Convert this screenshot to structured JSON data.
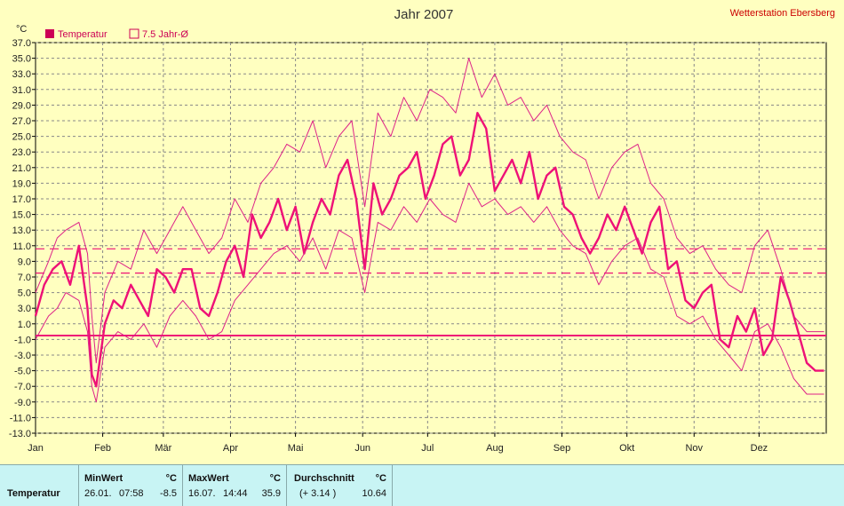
{
  "header": {
    "title": "Jahr 2007",
    "station": "Wetterstation Ebersberg",
    "unit": "°C"
  },
  "legend": [
    {
      "label": "Temperatur",
      "filled": true
    },
    {
      "label": "7.5 Jahr-Ø",
      "filled": false
    }
  ],
  "colors": {
    "background": "#ffffc0",
    "plot_background": "#ffffc0",
    "series": "#ee1177",
    "envelope": "#dd2288",
    "grid": "#888888",
    "stats_background": "#c8f4f4"
  },
  "chart_data": {
    "type": "line",
    "title": "Jahr 2007",
    "xlabel": "",
    "ylabel": "°C",
    "ylim": [
      -13.0,
      37.0
    ],
    "yticks": [
      "37.0",
      "35.0",
      "33.0",
      "31.0",
      "29.0",
      "27.0",
      "25.0",
      "23.0",
      "21.0",
      "19.0",
      "17.0",
      "15.0",
      "13.0",
      "11.0",
      "9.0",
      "7.0",
      "5.0",
      "3.0",
      "1.0",
      "-1.0",
      "-3.0",
      "-5.0",
      "-7.0",
      "-9.0",
      "-11.0",
      "-13.0"
    ],
    "months": [
      "Jan",
      "Feb",
      "Mär",
      "Apr",
      "Mai",
      "Jun",
      "Jul",
      "Aug",
      "Sep",
      "Okt",
      "Nov",
      "Dez"
    ],
    "month_start_day": [
      0,
      31,
      59,
      90,
      120,
      151,
      181,
      212,
      243,
      273,
      304,
      334
    ],
    "days_in_year": 365,
    "grid": true,
    "reference_lines": [
      {
        "name": "7.5 Jahr-Ø",
        "y": 10.6,
        "style": "dashed"
      },
      {
        "name": "7.5 Jahr-Ø",
        "y": 7.5,
        "style": "dashed"
      },
      {
        "name": "",
        "y": -0.5,
        "style": "solid"
      }
    ],
    "series": [
      {
        "name": "Temperatur",
        "x": [
          0,
          4,
          8,
          12,
          16,
          20,
          24,
          26,
          28,
          32,
          36,
          40,
          44,
          48,
          52,
          56,
          60,
          64,
          68,
          72,
          76,
          80,
          84,
          88,
          92,
          96,
          100,
          104,
          108,
          112,
          116,
          120,
          124,
          128,
          132,
          136,
          140,
          144,
          148,
          152,
          156,
          160,
          164,
          168,
          172,
          176,
          180,
          184,
          188,
          192,
          196,
          200,
          204,
          208,
          212,
          216,
          220,
          224,
          228,
          232,
          236,
          240,
          244,
          248,
          252,
          256,
          260,
          264,
          268,
          272,
          276,
          280,
          284,
          288,
          292,
          296,
          300,
          304,
          308,
          312,
          316,
          320,
          324,
          328,
          332,
          336,
          340,
          344,
          348,
          352,
          356,
          360,
          364
        ],
        "values": [
          2,
          6,
          8,
          9,
          6,
          11,
          3,
          -5.5,
          -7,
          1,
          4,
          3,
          6,
          4,
          2,
          8,
          7,
          5,
          8,
          8,
          3,
          2,
          5,
          9,
          11,
          7,
          15,
          12,
          14,
          17,
          13,
          16,
          10,
          14,
          17,
          15,
          20,
          22,
          17,
          8,
          19,
          15,
          17,
          20,
          21,
          23,
          17,
          20,
          24,
          25,
          20,
          22,
          28,
          26,
          18,
          20,
          22,
          19,
          23,
          17,
          20,
          21,
          16,
          15,
          12,
          10,
          12,
          15,
          13,
          16,
          13,
          10,
          14,
          16,
          8,
          9,
          4,
          3,
          5,
          6,
          -1,
          -2,
          2,
          0,
          3,
          -3,
          -1,
          7,
          4,
          0,
          -4,
          -5,
          -5
        ]
      },
      {
        "name": "7.5 Jahr-Ø max",
        "x": [
          0,
          6,
          10,
          14,
          20,
          24,
          26,
          28,
          32,
          38,
          44,
          50,
          56,
          62,
          68,
          74,
          80,
          86,
          92,
          98,
          104,
          110,
          116,
          122,
          128,
          134,
          140,
          146,
          152,
          158,
          164,
          170,
          176,
          182,
          188,
          194,
          200,
          206,
          212,
          218,
          224,
          230,
          236,
          242,
          248,
          254,
          260,
          266,
          272,
          278,
          284,
          290,
          296,
          302,
          308,
          314,
          320,
          326,
          332,
          338,
          344,
          350,
          356,
          364
        ],
        "values": [
          5,
          9,
          12,
          13,
          14,
          10,
          2,
          -4,
          5,
          9,
          8,
          13,
          10,
          13,
          16,
          13,
          10,
          12,
          17,
          14,
          19,
          21,
          24,
          23,
          27,
          21,
          25,
          27,
          16,
          28,
          25,
          30,
          27,
          31,
          30,
          28,
          35,
          30,
          33,
          29,
          30,
          27,
          29,
          25,
          23,
          22,
          17,
          21,
          23,
          24,
          19,
          17,
          12,
          10,
          11,
          8,
          6,
          5,
          11,
          13,
          8,
          2,
          0,
          0
        ]
      },
      {
        "name": "7.5 Jahr-Ø min",
        "x": [
          0,
          6,
          10,
          14,
          20,
          24,
          26,
          28,
          32,
          38,
          44,
          50,
          56,
          62,
          68,
          74,
          80,
          86,
          92,
          98,
          104,
          110,
          116,
          122,
          128,
          134,
          140,
          146,
          152,
          158,
          164,
          170,
          176,
          182,
          188,
          194,
          200,
          206,
          212,
          218,
          224,
          230,
          236,
          242,
          248,
          254,
          260,
          266,
          272,
          278,
          284,
          290,
          296,
          302,
          308,
          314,
          320,
          326,
          332,
          338,
          344,
          350,
          356,
          364
        ],
        "values": [
          -1,
          2,
          3,
          5,
          4,
          0,
          -7,
          -9,
          -2,
          0,
          -1,
          1,
          -2,
          2,
          4,
          2,
          -1,
          0,
          4,
          6,
          8,
          10,
          11,
          9,
          12,
          8,
          13,
          12,
          5,
          14,
          13,
          16,
          14,
          17,
          15,
          14,
          19,
          16,
          17,
          15,
          16,
          14,
          16,
          13,
          11,
          10,
          6,
          9,
          11,
          12,
          8,
          7,
          2,
          1,
          2,
          -1,
          -3,
          -5,
          0,
          1,
          -2,
          -6,
          -8,
          -8
        ]
      }
    ]
  },
  "stats": {
    "row_label": "Temperatur",
    "columns": [
      {
        "header": "MinWert",
        "unit": "°C",
        "date": "26.01.",
        "time": "07:58",
        "value": "-8.5"
      },
      {
        "header": "MaxWert",
        "unit": "°C",
        "date": "16.07.",
        "time": "14:44",
        "value": "35.9"
      },
      {
        "header": "Durchschnitt",
        "unit": "°C",
        "date": "(+ 3.14 )",
        "time": "",
        "value": "10.64"
      }
    ]
  }
}
